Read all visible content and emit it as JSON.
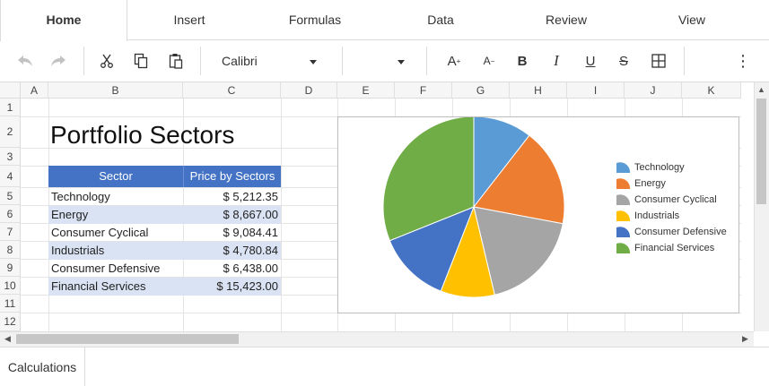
{
  "ribbon": {
    "tabs": [
      {
        "label": "Home",
        "active": true
      },
      {
        "label": "Insert"
      },
      {
        "label": "Formulas"
      },
      {
        "label": "Data"
      },
      {
        "label": "Review"
      },
      {
        "label": "View"
      }
    ]
  },
  "toolbar": {
    "font_name": "Calibri",
    "font_size": "",
    "icons": [
      "undo-icon",
      "redo-icon",
      "cut-icon",
      "copy-icon",
      "paste-icon",
      "increase-font-icon",
      "decrease-font-icon",
      "bold-icon",
      "italic-icon",
      "underline-icon",
      "strikethrough-icon",
      "borders-icon",
      "more-icon"
    ],
    "glyphs": {
      "increase_font": "A",
      "decrease_font": "A",
      "bold": "B",
      "italic": "I",
      "underline": "U",
      "strikethrough": "S",
      "more": "⋮"
    }
  },
  "sheet": {
    "columns": [
      "A",
      "B",
      "C",
      "D",
      "E",
      "F",
      "G",
      "H",
      "I",
      "J",
      "K"
    ],
    "rows": [
      "1",
      "2",
      "3",
      "4",
      "5",
      "6",
      "7",
      "8",
      "9",
      "10",
      "11",
      "12"
    ],
    "title": "Portfolio Sectors",
    "table": {
      "headers": [
        "Sector",
        "Price by Sectors"
      ],
      "rows": [
        {
          "sector": "Technology",
          "price": "$ 5,212.35"
        },
        {
          "sector": "Energy",
          "price": "$ 8,667.00"
        },
        {
          "sector": "Consumer Cyclical",
          "price": "$ 9,084.41"
        },
        {
          "sector": "Industrials",
          "price": "$ 4,780.84"
        },
        {
          "sector": "Consumer Defensive",
          "price": "$ 6,438.00"
        },
        {
          "sector": "Financial Services",
          "price": "$ 15,423.00"
        }
      ]
    },
    "colors": {
      "header_fill": "#4472c4",
      "band_fill": "#dae3f3"
    }
  },
  "chart_data": {
    "type": "pie",
    "categories": [
      "Technology",
      "Energy",
      "Consumer Cyclical",
      "Industrials",
      "Consumer Defensive",
      "Financial Services"
    ],
    "values": [
      5212.35,
      8667.0,
      9084.41,
      4780.84,
      6438.0,
      15423.0
    ],
    "colors": [
      "#5b9bd5",
      "#ed7d31",
      "#a5a5a5",
      "#ffc000",
      "#4472c4",
      "#70ad47"
    ],
    "legend": "right"
  },
  "sheet_tabs": [
    {
      "label": "Calculations",
      "active": true
    }
  ]
}
